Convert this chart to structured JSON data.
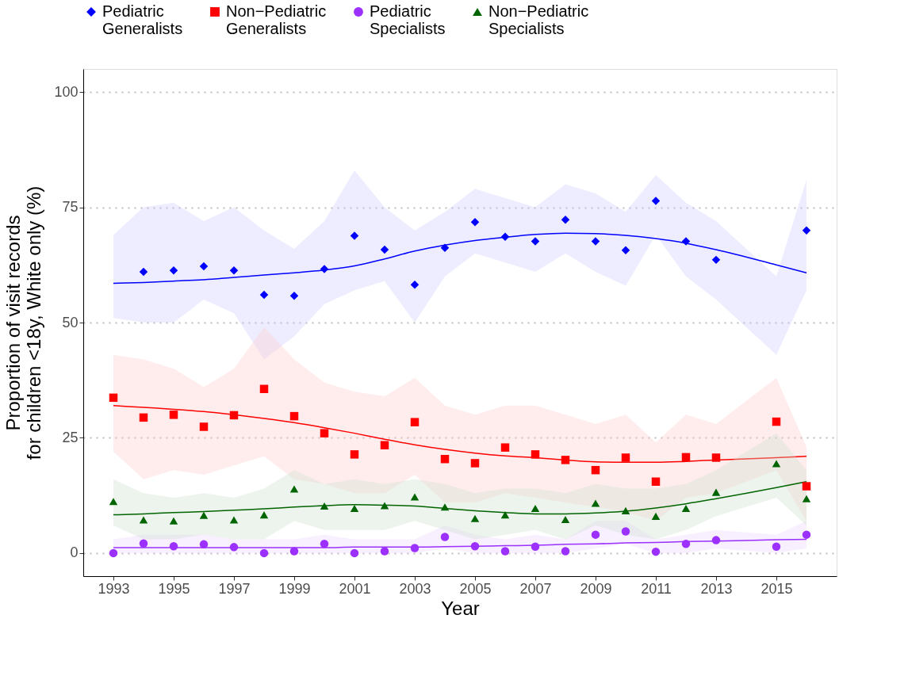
{
  "chart_data": {
    "type": "line",
    "xlabel": "Year",
    "ylabel": "Proportion of visit records\nfor children <18y, White only (%)",
    "x": [
      1993,
      1994,
      1995,
      1996,
      1997,
      1998,
      1999,
      2000,
      2001,
      2002,
      2003,
      2004,
      2005,
      2006,
      2007,
      2008,
      2009,
      2010,
      2011,
      2012,
      2013,
      2015,
      2016
    ],
    "series": [
      {
        "name": "Pediatric Generalists",
        "type": "scatter",
        "marker": "diamond",
        "color": "#0000ff",
        "values": [
          null,
          61,
          61.3,
          62.2,
          61.3,
          56,
          55.8,
          61.6,
          68.8,
          65.8,
          58.2,
          66.2,
          71.8,
          68.6,
          67.6,
          72.3,
          67.6,
          65.7,
          76.4,
          67.6,
          63.6,
          null,
          70
        ]
      },
      {
        "name": "Non−Pediatric Generalists",
        "type": "scatter",
        "marker": "square",
        "color": "#ff0000",
        "values": [
          33.7,
          29.4,
          30.0,
          27.4,
          29.9,
          35.6,
          29.7,
          26.0,
          21.4,
          23.4,
          28.4,
          20.4,
          19.5,
          22.9,
          21.4,
          20.2,
          18.0,
          20.7,
          15.5,
          20.8,
          20.7,
          28.5,
          14.5
        ]
      },
      {
        "name": "Pediatric Specialists",
        "type": "scatter",
        "marker": "circle",
        "color": "#9b30ff",
        "values": [
          0,
          2.1,
          1.5,
          1.9,
          1.3,
          0,
          0.4,
          2.0,
          0,
          0.4,
          1.1,
          3.5,
          1.5,
          0.4,
          1.4,
          0.4,
          4.0,
          4.7,
          0.3,
          2.0,
          2.8,
          1.4,
          4.0
        ]
      },
      {
        "name": "Non−Pediatric Specialists",
        "type": "scatter",
        "marker": "triangle",
        "color": "#006400",
        "values": [
          11.2,
          7.2,
          7.0,
          8.2,
          7.2,
          8.3,
          13.9,
          10.2,
          9.7,
          10.3,
          12.2,
          10.0,
          7.5,
          8.3,
          9.7,
          7.3,
          10.8,
          9.2,
          8.0,
          9.7,
          13.2,
          19.4,
          11.8
        ]
      },
      {
        "type": "line",
        "color": "#0000ff",
        "values": [
          58.5,
          58.7,
          59,
          59.3,
          59.8,
          60.3,
          60.8,
          61.4,
          62.3,
          63.8,
          65.5,
          66.8,
          67.8,
          68.5,
          69.1,
          69.4,
          69.3,
          68.9,
          68.2,
          67.2,
          65.8,
          62.5,
          60.8
        ],
        "lower": [
          51,
          50,
          50,
          55,
          52,
          42,
          47,
          54,
          57,
          59,
          50,
          60,
          65,
          63,
          61,
          65,
          61,
          58,
          69,
          60,
          55,
          43,
          57
        ],
        "upper": [
          69,
          75,
          76,
          72,
          75,
          70,
          66,
          72,
          83,
          75,
          70,
          74,
          79,
          77,
          75,
          80,
          78,
          74,
          82,
          76,
          72,
          60,
          81
        ]
      },
      {
        "type": "line",
        "color": "#ff0000",
        "values": [
          32,
          31.6,
          31.2,
          30.7,
          30,
          29.2,
          28.3,
          27.2,
          26,
          24.7,
          23.5,
          22.5,
          21.7,
          21.1,
          20.7,
          20.2,
          19.8,
          19.7,
          19.7,
          19.9,
          20.2,
          20.7,
          21
        ],
        "lower": [
          22,
          16,
          18,
          17,
          19,
          21,
          16,
          15,
          13,
          13,
          17,
          11,
          11,
          13,
          12,
          11,
          10,
          9,
          7,
          12,
          13,
          18,
          7
        ],
        "upper": [
          43,
          42,
          40,
          36,
          40,
          49,
          42,
          37,
          35,
          34,
          38,
          32,
          30,
          32,
          32,
          30,
          28,
          30,
          24,
          30,
          28,
          38,
          23
        ]
      },
      {
        "type": "line",
        "color": "#9b30ff",
        "values": [
          1.2,
          1.2,
          1.2,
          1.2,
          1.2,
          1.2,
          1.2,
          1.2,
          1.3,
          1.3,
          1.3,
          1.4,
          1.5,
          1.6,
          1.7,
          1.9,
          2.0,
          2.2,
          2.3,
          2.5,
          2.6,
          2.9,
          3.0
        ],
        "lower": [
          0,
          0,
          0,
          0,
          0,
          0,
          0,
          0,
          0,
          0,
          0,
          1,
          0,
          0,
          0,
          0,
          1,
          2,
          0,
          0,
          1,
          0,
          1
        ],
        "upper": [
          3,
          4,
          4,
          4,
          3,
          3,
          3,
          4,
          3,
          3,
          3,
          6,
          4,
          3,
          4,
          3,
          7,
          7,
          3,
          4,
          5,
          4,
          7
        ]
      },
      {
        "type": "line",
        "color": "#006400",
        "values": [
          8.3,
          8.5,
          8.8,
          9,
          9.3,
          9.6,
          10,
          10.3,
          10.5,
          10.4,
          10.2,
          9.7,
          9.2,
          8.8,
          8.5,
          8.5,
          8.7,
          9.1,
          9.8,
          10.7,
          11.8,
          14.2,
          15.5
        ],
        "lower": [
          6,
          3,
          3,
          4,
          3,
          3,
          7,
          5,
          5,
          5,
          7,
          5,
          3,
          4,
          5,
          3,
          6,
          4,
          3,
          5,
          8,
          12,
          6
        ],
        "upper": [
          16,
          13,
          12,
          13,
          12,
          14,
          18,
          15,
          16,
          15,
          16,
          15,
          13,
          14,
          14,
          13,
          15,
          14,
          14,
          15,
          18,
          26,
          18
        ]
      }
    ],
    "xlim": [
      1992,
      2017
    ],
    "xticks": [
      1993,
      1995,
      1997,
      1999,
      2001,
      2003,
      2005,
      2007,
      2009,
      2011,
      2013,
      2015
    ],
    "ylim": [
      -5,
      105
    ],
    "yticks": [
      0,
      25,
      50,
      75,
      100
    ],
    "grid": "y",
    "legend": "top"
  }
}
